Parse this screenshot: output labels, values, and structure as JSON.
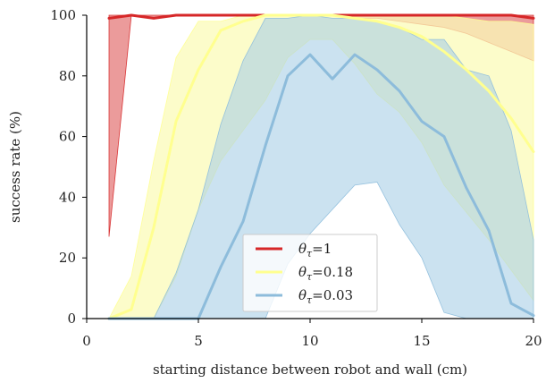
{
  "chart_data": {
    "type": "area",
    "xlabel": "starting distance between robot and wall (cm)",
    "ylabel": "success rate (%)",
    "xlim": [
      0,
      20
    ],
    "ylim": [
      0,
      100
    ],
    "xticks": [
      "0",
      "5",
      "10",
      "15",
      "20"
    ],
    "yticks": [
      "0",
      "20",
      "40",
      "60",
      "80",
      "100"
    ],
    "grid": false,
    "legend_position": "lower-center",
    "x": [
      1,
      2,
      3,
      4,
      5,
      6,
      7,
      8,
      9,
      10,
      11,
      12,
      13,
      14,
      15,
      16,
      17,
      18,
      19,
      20
    ],
    "series": [
      {
        "name": "θτ=1",
        "label_symbol": "θ",
        "label_sub": "τ",
        "label_value": "=1",
        "color": "#d62728",
        "fill": "#e88a8a",
        "fill_opacity": 0.85,
        "mean": [
          99,
          100,
          99,
          100,
          100,
          100,
          100,
          100,
          100,
          100,
          100,
          100,
          100,
          100,
          100,
          100,
          100,
          100,
          100,
          99
        ],
        "upper": [
          100,
          100,
          100,
          100,
          100,
          100,
          100,
          100,
          100,
          100,
          100,
          100,
          100,
          100,
          100,
          100,
          100,
          100,
          100,
          100
        ],
        "lower": [
          27,
          100,
          99,
          100,
          100,
          100,
          100,
          100,
          100,
          100,
          100,
          99,
          99,
          98,
          97,
          96,
          94,
          91,
          88,
          85
        ]
      },
      {
        "name": "θτ=0.18",
        "label_symbol": "θ",
        "label_sub": "τ",
        "label_value": "=0.18",
        "color": "#ffff8f",
        "fill": "#fbfbb8",
        "fill_opacity": 0.75,
        "mean": [
          0,
          3,
          30,
          65,
          82,
          95,
          98,
          100,
          100,
          100,
          100,
          99,
          98,
          96,
          93,
          88,
          82,
          75,
          66,
          55
        ],
        "upper": [
          0,
          14,
          52,
          86,
          98,
          98,
          100,
          100,
          100,
          100,
          100,
          100,
          100,
          100,
          100,
          100,
          99,
          98,
          98,
          97
        ],
        "lower": [
          0,
          0,
          0,
          14,
          36,
          52,
          62,
          72,
          86,
          92,
          92,
          84,
          74,
          68,
          58,
          44,
          35,
          26,
          16,
          6
        ]
      },
      {
        "name": "θτ=0.03",
        "label_symbol": "θ",
        "label_sub": "τ",
        "label_value": "=0.03",
        "color": "#8dbcdb",
        "fill": "#a9cfe6",
        "fill_opacity": 0.6,
        "mean": [
          0,
          0,
          0,
          0,
          0,
          17,
          32,
          57,
          80,
          87,
          79,
          87,
          82,
          75,
          65,
          60,
          43,
          29,
          5,
          1
        ],
        "upper": [
          0,
          0,
          0,
          15,
          36,
          64,
          85,
          99,
          99,
          100,
          99,
          99,
          98,
          96,
          92,
          92,
          82,
          80,
          62,
          26
        ],
        "lower": [
          0,
          0,
          0,
          0,
          0,
          0,
          0,
          0,
          18,
          28,
          36,
          44,
          45,
          31,
          20,
          2,
          0,
          0,
          0,
          0
        ]
      }
    ]
  }
}
